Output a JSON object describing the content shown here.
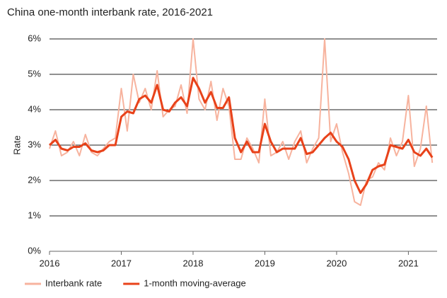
{
  "chart_data": {
    "type": "line",
    "title": "China one-month interbank rate, 2016-2021",
    "y_label": "Rate",
    "x": [
      2016.0,
      2016.083,
      2016.167,
      2016.25,
      2016.333,
      2016.417,
      2016.5,
      2016.583,
      2016.667,
      2016.75,
      2016.833,
      2016.917,
      2017.0,
      2017.083,
      2017.167,
      2017.25,
      2017.333,
      2017.417,
      2017.5,
      2017.583,
      2017.667,
      2017.75,
      2017.833,
      2017.917,
      2018.0,
      2018.083,
      2018.167,
      2018.25,
      2018.333,
      2018.417,
      2018.5,
      2018.583,
      2018.667,
      2018.75,
      2018.833,
      2018.917,
      2019.0,
      2019.083,
      2019.167,
      2019.25,
      2019.333,
      2019.417,
      2019.5,
      2019.583,
      2019.667,
      2019.75,
      2019.833,
      2019.917,
      2020.0,
      2020.083,
      2020.167,
      2020.25,
      2020.333,
      2020.417,
      2020.5,
      2020.583,
      2020.667,
      2020.75,
      2020.833,
      2020.917,
      2021.0,
      2021.083,
      2021.167,
      2021.25,
      2021.333
    ],
    "series": [
      {
        "name": "Interbank rate",
        "color": "#f7b39e",
        "width": 2,
        "values": [
          2.9,
          3.4,
          2.7,
          2.8,
          3.1,
          2.7,
          3.3,
          2.8,
          2.7,
          2.9,
          3.1,
          3.2,
          4.6,
          3.4,
          5.0,
          4.2,
          4.6,
          4.0,
          5.1,
          3.8,
          4.0,
          4.1,
          4.7,
          3.9,
          6.0,
          4.3,
          4.0,
          4.8,
          3.7,
          4.6,
          4.1,
          2.6,
          2.6,
          3.2,
          2.9,
          2.5,
          4.3,
          2.7,
          2.8,
          3.1,
          2.6,
          3.1,
          3.4,
          2.5,
          2.9,
          3.2,
          6.0,
          3.1,
          3.6,
          2.8,
          2.2,
          1.4,
          1.3,
          2.0,
          2.1,
          2.5,
          2.3,
          3.2,
          2.7,
          3.1,
          4.4,
          2.4,
          2.9,
          4.1,
          2.5
        ]
      },
      {
        "name": "1-month moving-average",
        "color": "#e8421a",
        "width": 3,
        "values": [
          3.0,
          3.15,
          2.9,
          2.85,
          2.95,
          2.95,
          3.05,
          2.85,
          2.8,
          2.85,
          3.0,
          3.0,
          3.8,
          3.95,
          3.9,
          4.3,
          4.4,
          4.2,
          4.7,
          4.0,
          3.95,
          4.2,
          4.35,
          4.1,
          4.9,
          4.6,
          4.2,
          4.5,
          4.05,
          4.05,
          4.35,
          3.2,
          2.8,
          3.1,
          2.8,
          2.8,
          3.6,
          3.1,
          2.8,
          2.9,
          2.9,
          2.9,
          3.2,
          2.75,
          2.8,
          3.0,
          3.2,
          3.35,
          3.1,
          2.95,
          2.6,
          2.0,
          1.65,
          1.9,
          2.3,
          2.4,
          2.45,
          3.0,
          2.95,
          2.9,
          3.15,
          2.8,
          2.7,
          2.9,
          2.65
        ]
      }
    ],
    "xlim": [
      2016,
      2021.4
    ],
    "xticks": [
      2016,
      2017,
      2018,
      2019,
      2020,
      2021
    ],
    "ylim": [
      0,
      6
    ],
    "yticks": [
      {
        "value": 0,
        "label": "0%"
      },
      {
        "value": 1,
        "label": "1%"
      },
      {
        "value": 2,
        "label": "2%"
      },
      {
        "value": 3,
        "label": "3%"
      },
      {
        "value": 4,
        "label": "4%"
      },
      {
        "value": 5,
        "label": "5%"
      },
      {
        "value": 6,
        "label": "6%"
      }
    ],
    "grid": true,
    "legend": "bottom"
  }
}
